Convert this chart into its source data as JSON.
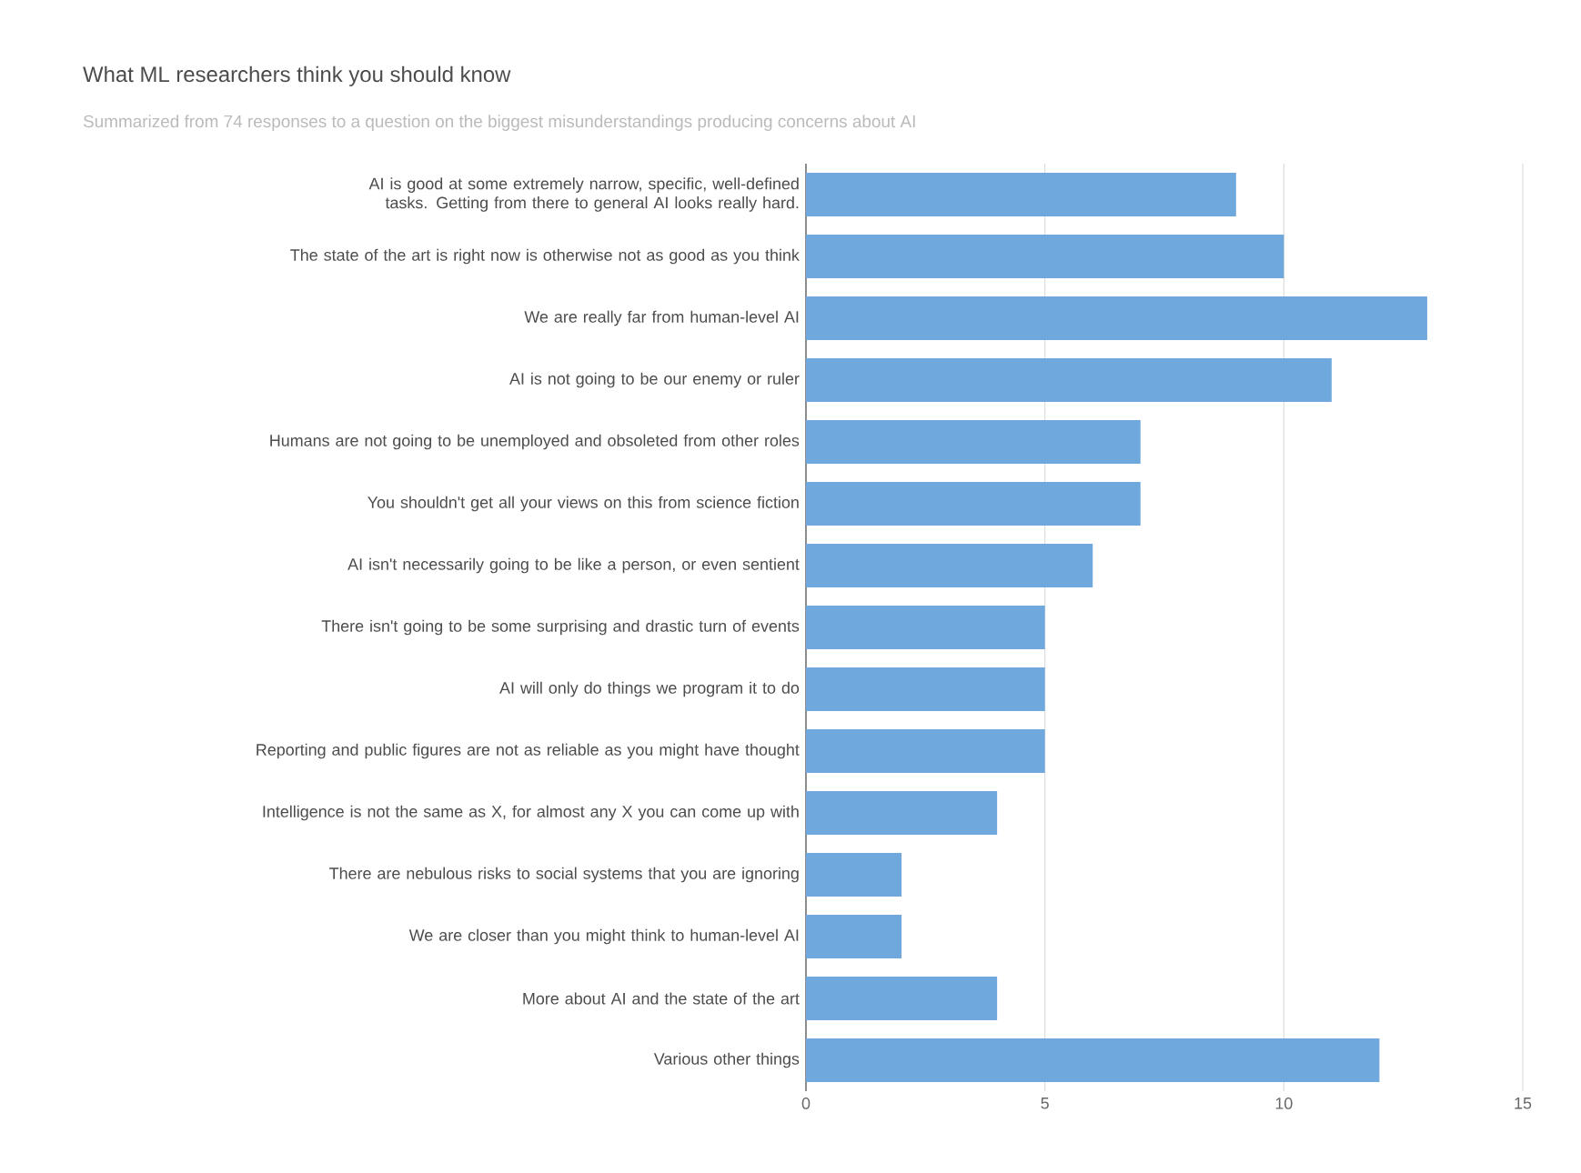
{
  "chart_data": {
    "type": "bar",
    "orientation": "horizontal",
    "title": "What ML researchers think you should know",
    "subtitle": "Summarized from 74 responses to a question on the biggest misunderstandings producing concerns about AI",
    "categories": [
      "AI is good at some extremely narrow, specific, well-defined tasks. Getting from there to general AI looks really hard.",
      "The state of the art is right now is otherwise not as good as you think",
      "We are really far from human-level AI",
      "AI is not going to be our enemy or ruler",
      "Humans are not going to be unemployed and obsoleted from other roles",
      "You shouldn't get all your views on this from science fiction",
      "AI isn't necessarily going to be like a person, or even sentient",
      "There isn't going to be some surprising and drastic turn of events",
      "AI will only do things we program it to do",
      "Reporting and public figures are not as reliable as you might have thought",
      "Intelligence is not the same as X, for almost any X you can come up with",
      "There are nebulous risks to social systems that you are ignoring",
      "We are closer than you might think to human-level AI",
      "More about AI and the state of the art",
      "Various other things"
    ],
    "values": [
      9,
      10,
      13,
      11,
      7,
      7,
      6,
      5,
      5,
      5,
      4,
      2,
      2,
      4,
      12
    ],
    "color": "#6fa8dc",
    "xlim": [
      0,
      15
    ],
    "xticks": [
      0,
      5,
      10,
      15
    ],
    "grid": "x"
  }
}
